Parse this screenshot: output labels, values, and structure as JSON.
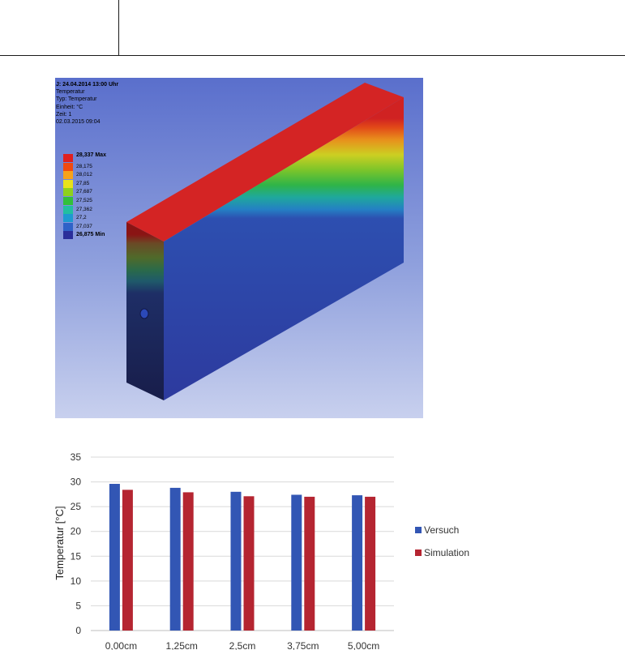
{
  "simulation": {
    "info_lines": [
      "J: 24.04.2014 13:00 Uhr",
      "Temperatur",
      "Typ: Temperatur",
      "Einheit: °C",
      "Zeit: 1",
      "02.03.2015 09:04"
    ],
    "legend": [
      {
        "label": "28,337 Max",
        "color": "#e02020",
        "bold": true
      },
      {
        "label": "28,175",
        "color": "#f04a10",
        "bold": false
      },
      {
        "label": "28,012",
        "color": "#f7a21a",
        "bold": false
      },
      {
        "label": "27,85",
        "color": "#e8e21a",
        "bold": false
      },
      {
        "label": "27,687",
        "color": "#8fd11c",
        "bold": false
      },
      {
        "label": "27,525",
        "color": "#32c03a",
        "bold": false
      },
      {
        "label": "27,362",
        "color": "#22bfa0",
        "bold": false
      },
      {
        "label": "27,2",
        "color": "#1e9ad0",
        "bold": false
      },
      {
        "label": "27,037",
        "color": "#2f62c8",
        "bold": false
      },
      {
        "label": "26,875 Min",
        "color": "#2a2e9a",
        "bold": true
      }
    ]
  },
  "chart_data": {
    "type": "bar",
    "categories": [
      "0,00cm",
      "1,25cm",
      "2,5cm",
      "3,75cm",
      "5,00cm"
    ],
    "series": [
      {
        "name": "Versuch",
        "color": "#3256b4",
        "values": [
          29.6,
          28.8,
          28.0,
          27.4,
          27.3
        ]
      },
      {
        "name": "Simulation",
        "color": "#b52531",
        "values": [
          28.4,
          27.9,
          27.1,
          27.0,
          27.0
        ]
      }
    ],
    "ylabel": "Temperatur [°C]",
    "ylim": [
      0,
      35
    ],
    "yticks": [
      "0",
      "5",
      "10",
      "15",
      "20",
      "25",
      "30",
      "35"
    ],
    "grid": true,
    "legend_position": "right"
  }
}
